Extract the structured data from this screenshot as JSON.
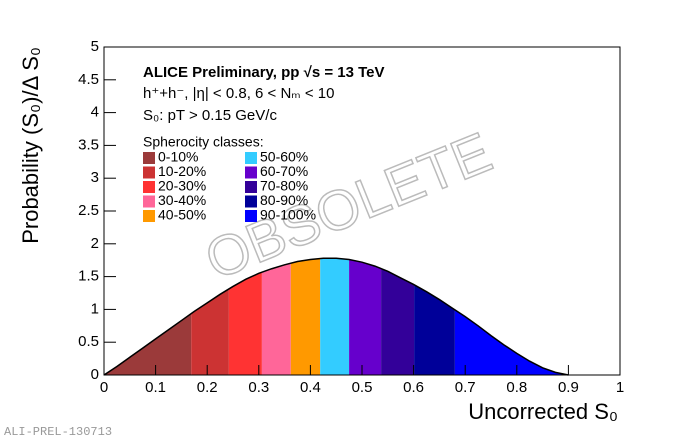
{
  "chart_data": {
    "type": "area",
    "annotations": [
      "ALICE Preliminary, pp √s = 13 TeV",
      "h⁺+h⁻, |η| < 0.8, 6 < Nₘ < 10",
      "S₀: pT > 0.15 GeV/c"
    ],
    "legend_title": "Spherocity classes:",
    "watermark": "OBSOLETE",
    "footer": "ALI-PREL-130713",
    "xlabel": "Uncorrected S₀",
    "ylabel": "Probability (S₀)/Δ S₀",
    "xlim": [
      0,
      1
    ],
    "ylim": [
      0,
      5
    ],
    "xticks": [
      0,
      0.1,
      0.2,
      0.3,
      0.4,
      0.5,
      0.6,
      0.7,
      0.8,
      0.9,
      1
    ],
    "yticks": [
      0,
      0.5,
      1,
      1.5,
      2,
      2.5,
      3,
      3.5,
      4,
      4.5,
      5
    ],
    "x": [
      0,
      0.025,
      0.05,
      0.075,
      0.1,
      0.125,
      0.15,
      0.175,
      0.2,
      0.225,
      0.25,
      0.275,
      0.3,
      0.325,
      0.35,
      0.375,
      0.4,
      0.425,
      0.45,
      0.475,
      0.5,
      0.525,
      0.55,
      0.575,
      0.6,
      0.625,
      0.65,
      0.675,
      0.7,
      0.725,
      0.75,
      0.775,
      0.8,
      0.825,
      0.85,
      0.875,
      0.9
    ],
    "values": [
      0,
      0.13,
      0.27,
      0.41,
      0.55,
      0.69,
      0.83,
      0.97,
      1.1,
      1.23,
      1.35,
      1.46,
      1.55,
      1.62,
      1.68,
      1.73,
      1.76,
      1.78,
      1.78,
      1.76,
      1.72,
      1.66,
      1.58,
      1.48,
      1.38,
      1.27,
      1.15,
      1.02,
      0.89,
      0.75,
      0.6,
      0.46,
      0.33,
      0.21,
      0.11,
      0.04,
      0
    ],
    "classes": [
      {
        "name": "0-10%",
        "color": "#9b3a3a",
        "x_range": [
          0,
          0.169
        ]
      },
      {
        "name": "10-20%",
        "color": "#cc3333",
        "x_range": [
          0.169,
          0.242
        ]
      },
      {
        "name": "20-30%",
        "color": "#ff3333",
        "x_range": [
          0.242,
          0.306
        ]
      },
      {
        "name": "30-40%",
        "color": "#ff6699",
        "x_range": [
          0.306,
          0.362
        ]
      },
      {
        "name": "40-50%",
        "color": "#ff9900",
        "x_range": [
          0.362,
          0.419
        ]
      },
      {
        "name": "50-60%",
        "color": "#33ccff",
        "x_range": [
          0.419,
          0.475
        ]
      },
      {
        "name": "60-70%",
        "color": "#6600cc",
        "x_range": [
          0.475,
          0.537
        ]
      },
      {
        "name": "70-80%",
        "color": "#330099",
        "x_range": [
          0.537,
          0.601
        ]
      },
      {
        "name": "80-90%",
        "color": "#000099",
        "x_range": [
          0.601,
          0.68
        ]
      },
      {
        "name": "90-100%",
        "color": "#0000ff",
        "x_range": [
          0.68,
          0.9
        ]
      }
    ]
  }
}
